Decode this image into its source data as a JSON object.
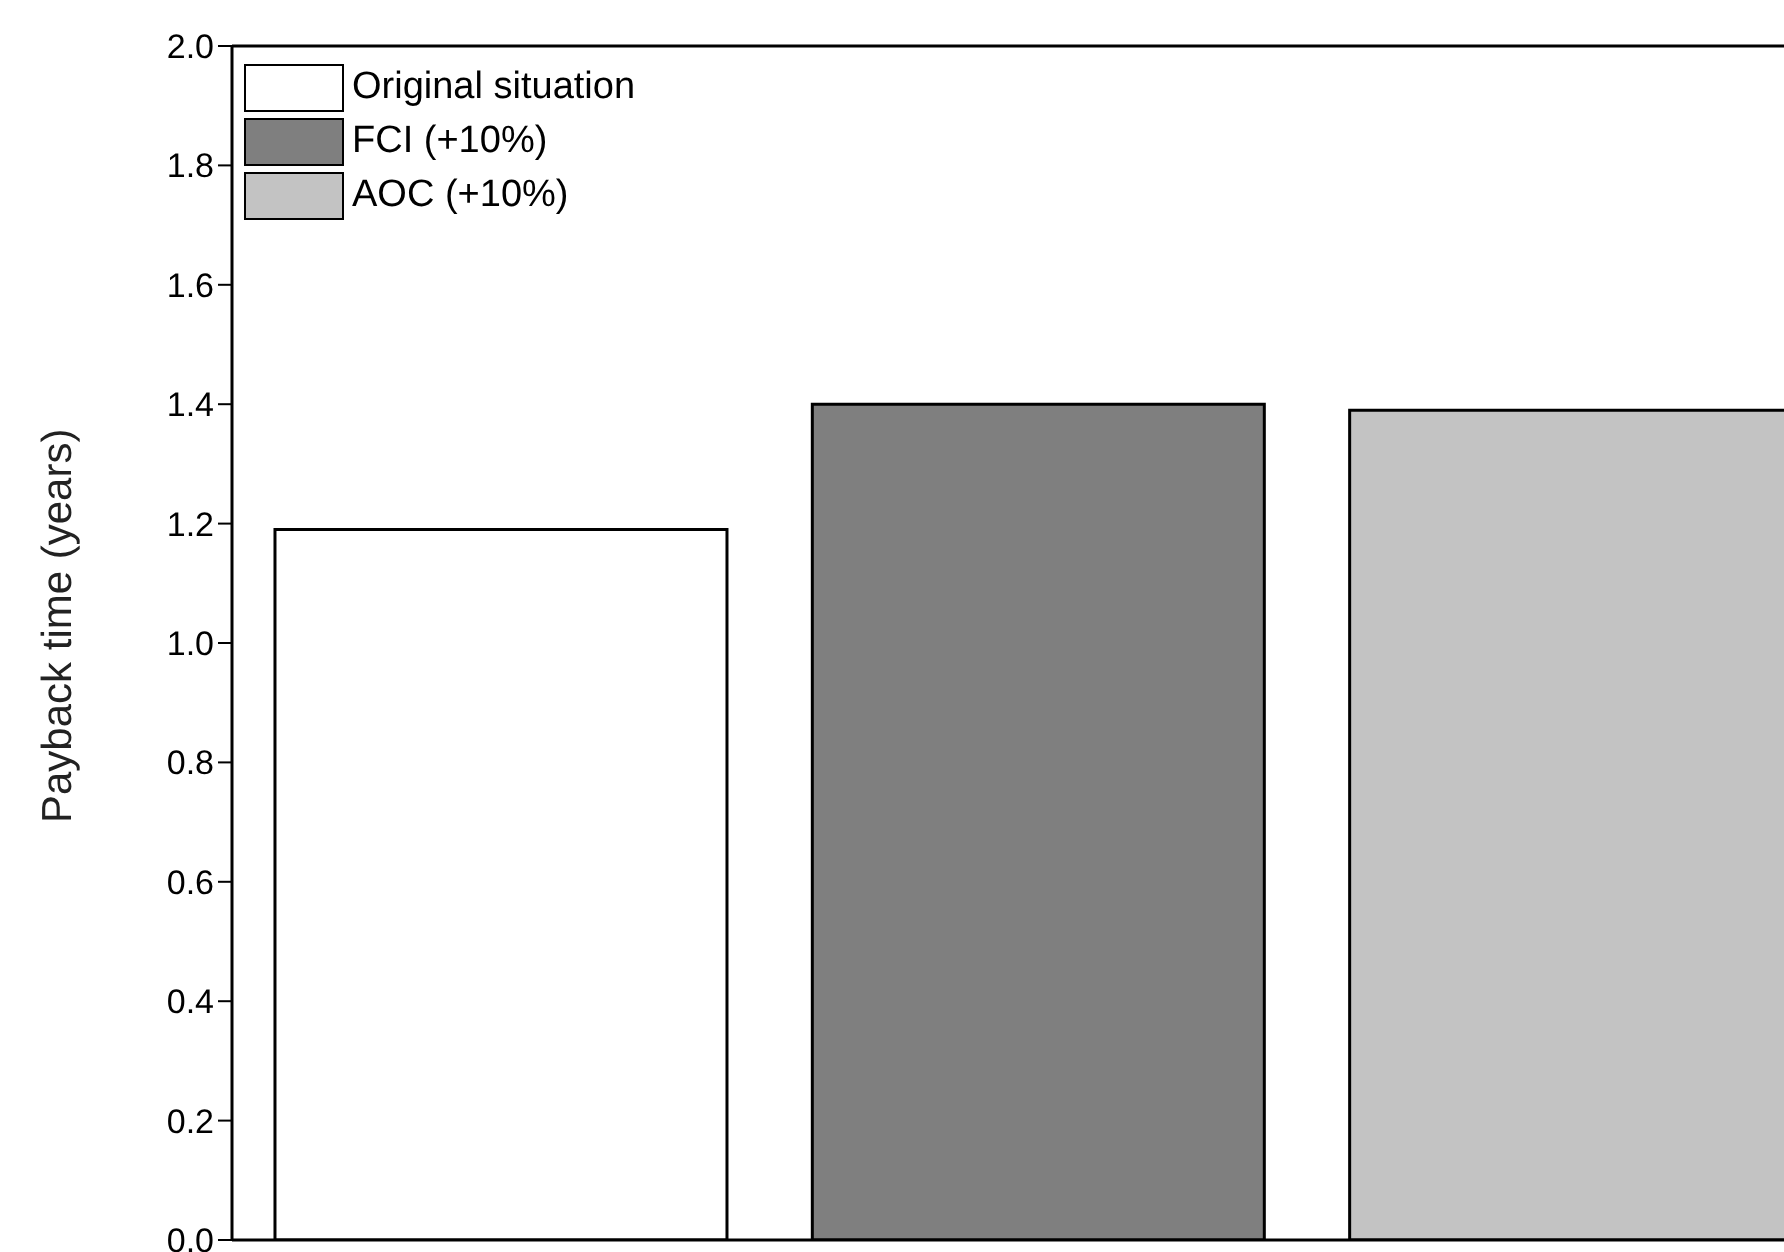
{
  "chart_data": {
    "type": "bar",
    "ylabel": "Payback time (years)",
    "categories": [
      null,
      null,
      null
    ],
    "stacked": true,
    "series": [
      {
        "name": "Original situation",
        "color": "#ffffff",
        "values": [
          1.19,
          null,
          null
        ]
      },
      {
        "name": "FCI (+10%)",
        "color": "#7f7f7f",
        "values": [
          null,
          1.4,
          null
        ]
      },
      {
        "name": "AOC (+10%)",
        "color": "#c3c3c3",
        "values": [
          null,
          null,
          1.39
        ]
      }
    ],
    "ylim": [
      0,
      2.0
    ],
    "yticks": [
      {
        "value": 0,
        "label": "0.0"
      },
      {
        "value": 0.2,
        "label": "0.2"
      },
      {
        "value": 0.4,
        "label": "0.4"
      },
      {
        "value": 0.6,
        "label": "0.6"
      },
      {
        "value": 0.8,
        "label": "0.8"
      },
      {
        "value": 1.0,
        "label": "1.0"
      },
      {
        "value": 1.2,
        "label": "1.2"
      },
      {
        "value": 1.4,
        "label": "1.4"
      },
      {
        "value": 1.6,
        "label": "1.6"
      },
      {
        "value": 1.8,
        "label": "1.8"
      },
      {
        "value": 2.0,
        "label": "2.0"
      }
    ],
    "legend": "top left",
    "grid": false,
    "tick_labels": "y"
  }
}
